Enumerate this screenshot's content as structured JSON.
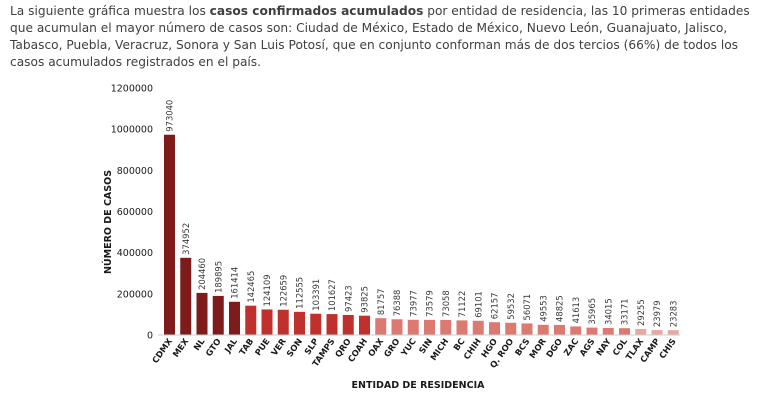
{
  "intro": {
    "part1": "La siguiente gráfica muestra los ",
    "bold": "casos confirmados acumulados",
    "part2": " por entidad de residencia, las 10 primeras entidades que acumulan el mayor número de casos son: Ciudad de México, Estado de México, Nuevo León, Guanajuato, Jalisco, Tabasco, Puebla, Veracruz, Sonora y San Luis Potosí, que en conjunto conforman más de dos tercios (66%) de todos los casos acumulados registrados en el país."
  },
  "colors": {
    "dark": "#7e1b1b",
    "mid": "#c0302c",
    "light": "#dc7a72",
    "lightest": "#e9a7a0",
    "axis": "#cccccc"
  },
  "chart_data": {
    "type": "bar",
    "xlabel": "ENTIDAD DE RESIDENCIA",
    "ylabel": "NÚMERO DE CASOS",
    "ylim": [
      0,
      1200000
    ],
    "yticks": [
      0,
      200000,
      400000,
      600000,
      800000,
      1000000,
      1200000
    ],
    "ytick_labels": [
      "0",
      "200000",
      "400000",
      "600000",
      "800000",
      "1000000",
      "1200000"
    ],
    "grid": false,
    "categories": [
      "CDMX",
      "MEX",
      "NL",
      "GTO",
      "JAL",
      "TAB",
      "PUE",
      "VER",
      "SON",
      "SLP",
      "TAMPS",
      "QRO",
      "COAH",
      "OAX",
      "GRO",
      "YUC",
      "SIN",
      "MICH",
      "BC",
      "CHIH",
      "HGO",
      "Q. ROO",
      "BCS",
      "MOR",
      "DGO",
      "ZAC",
      "AGS",
      "NAY",
      "COL",
      "TLAX",
      "CAMP",
      "CHIS"
    ],
    "values": [
      973040,
      374952,
      204460,
      189895,
      161414,
      142465,
      124109,
      122659,
      112555,
      103391,
      101627,
      97423,
      93825,
      81757,
      76388,
      73977,
      73579,
      73058,
      71122,
      69101,
      62157,
      59532,
      56071,
      49553,
      48825,
      41613,
      35965,
      34015,
      33171,
      29255,
      23979,
      23283
    ]
  }
}
